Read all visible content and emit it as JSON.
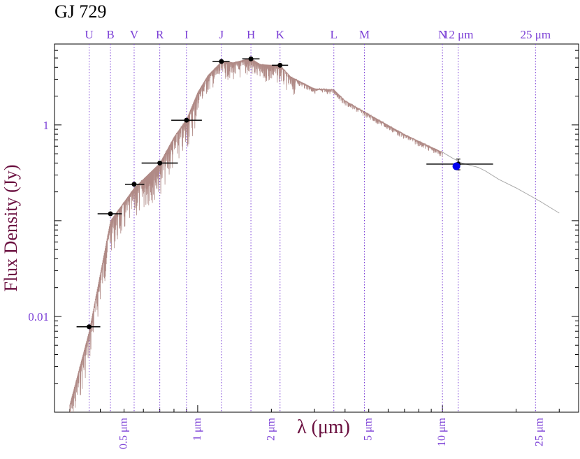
{
  "chart_data": {
    "type": "scatter",
    "title": "GJ 729",
    "xlabel": "λ (μm)",
    "ylabel": "Flux Density (Jy)",
    "x_scale": "log",
    "y_scale": "log",
    "xlim": [
      0.26,
      36
    ],
    "ylim": [
      0.001,
      7
    ],
    "y_ticks": [
      {
        "value": 0.01,
        "label": "0.01"
      },
      {
        "value": 1,
        "label": "1"
      }
    ],
    "x_ticks": [
      {
        "value": 0.5,
        "label": "0.5 μm"
      },
      {
        "value": 1,
        "label": "1 μm"
      },
      {
        "value": 2,
        "label": "2 μm"
      },
      {
        "value": 5,
        "label": "5 μm"
      },
      {
        "value": 10,
        "label": "10 μm"
      },
      {
        "value": 25,
        "label": "25 μm"
      }
    ],
    "bands": [
      {
        "label": "U",
        "wavelength": 0.36
      },
      {
        "label": "B",
        "wavelength": 0.44
      },
      {
        "label": "V",
        "wavelength": 0.55
      },
      {
        "label": "R",
        "wavelength": 0.7
      },
      {
        "label": "I",
        "wavelength": 0.9
      },
      {
        "label": "J",
        "wavelength": 1.25
      },
      {
        "label": "H",
        "wavelength": 1.65
      },
      {
        "label": "K",
        "wavelength": 2.17
      },
      {
        "label": "L",
        "wavelength": 3.6
      },
      {
        "label": "M",
        "wavelength": 4.8
      },
      {
        "label": "N",
        "wavelength": 10.0
      },
      {
        "label": "12 μm",
        "wavelength": 11.6
      },
      {
        "label": "25 μm",
        "wavelength": 24.0
      }
    ],
    "photometry": [
      {
        "x": 0.36,
        "y": 0.0078,
        "xerr_lo": 0.04,
        "xerr_hi": 0.04,
        "color": "#000000"
      },
      {
        "x": 0.44,
        "y": 0.118,
        "xerr_lo": 0.05,
        "xerr_hi": 0.05,
        "color": "#000000"
      },
      {
        "x": 0.55,
        "y": 0.24,
        "xerr_lo": 0.045,
        "xerr_hi": 0.055,
        "color": "#000000"
      },
      {
        "x": 0.7,
        "y": 0.4,
        "xerr_lo": 0.11,
        "xerr_hi": 0.13,
        "color": "#000000"
      },
      {
        "x": 0.9,
        "y": 1.12,
        "xerr_lo": 0.12,
        "xerr_hi": 0.14,
        "color": "#000000"
      },
      {
        "x": 1.25,
        "y": 4.6,
        "xerr_lo": 0.1,
        "xerr_hi": 0.1,
        "color": "#000000"
      },
      {
        "x": 1.65,
        "y": 4.9,
        "xerr_lo": 0.13,
        "xerr_hi": 0.14,
        "color": "#000000"
      },
      {
        "x": 2.17,
        "y": 4.2,
        "xerr_lo": 0.16,
        "xerr_hi": 0.17,
        "color": "#000000"
      },
      {
        "x": 11.6,
        "y": 0.39,
        "xerr_lo": 3.0,
        "xerr_hi": 4.5,
        "yerr": 0.05,
        "color": "#000000"
      },
      {
        "x": 11.4,
        "y": 0.37,
        "color": "#0000ee"
      }
    ],
    "model_color": "#b08a86",
    "tail_color": "#aaaaaa",
    "band_line_color": "#7b3fd6",
    "ylabel_color": "#6b1040",
    "xlabel_color": "#6b1040",
    "tick_label_color": "#7b3fd6",
    "grid": false
  }
}
